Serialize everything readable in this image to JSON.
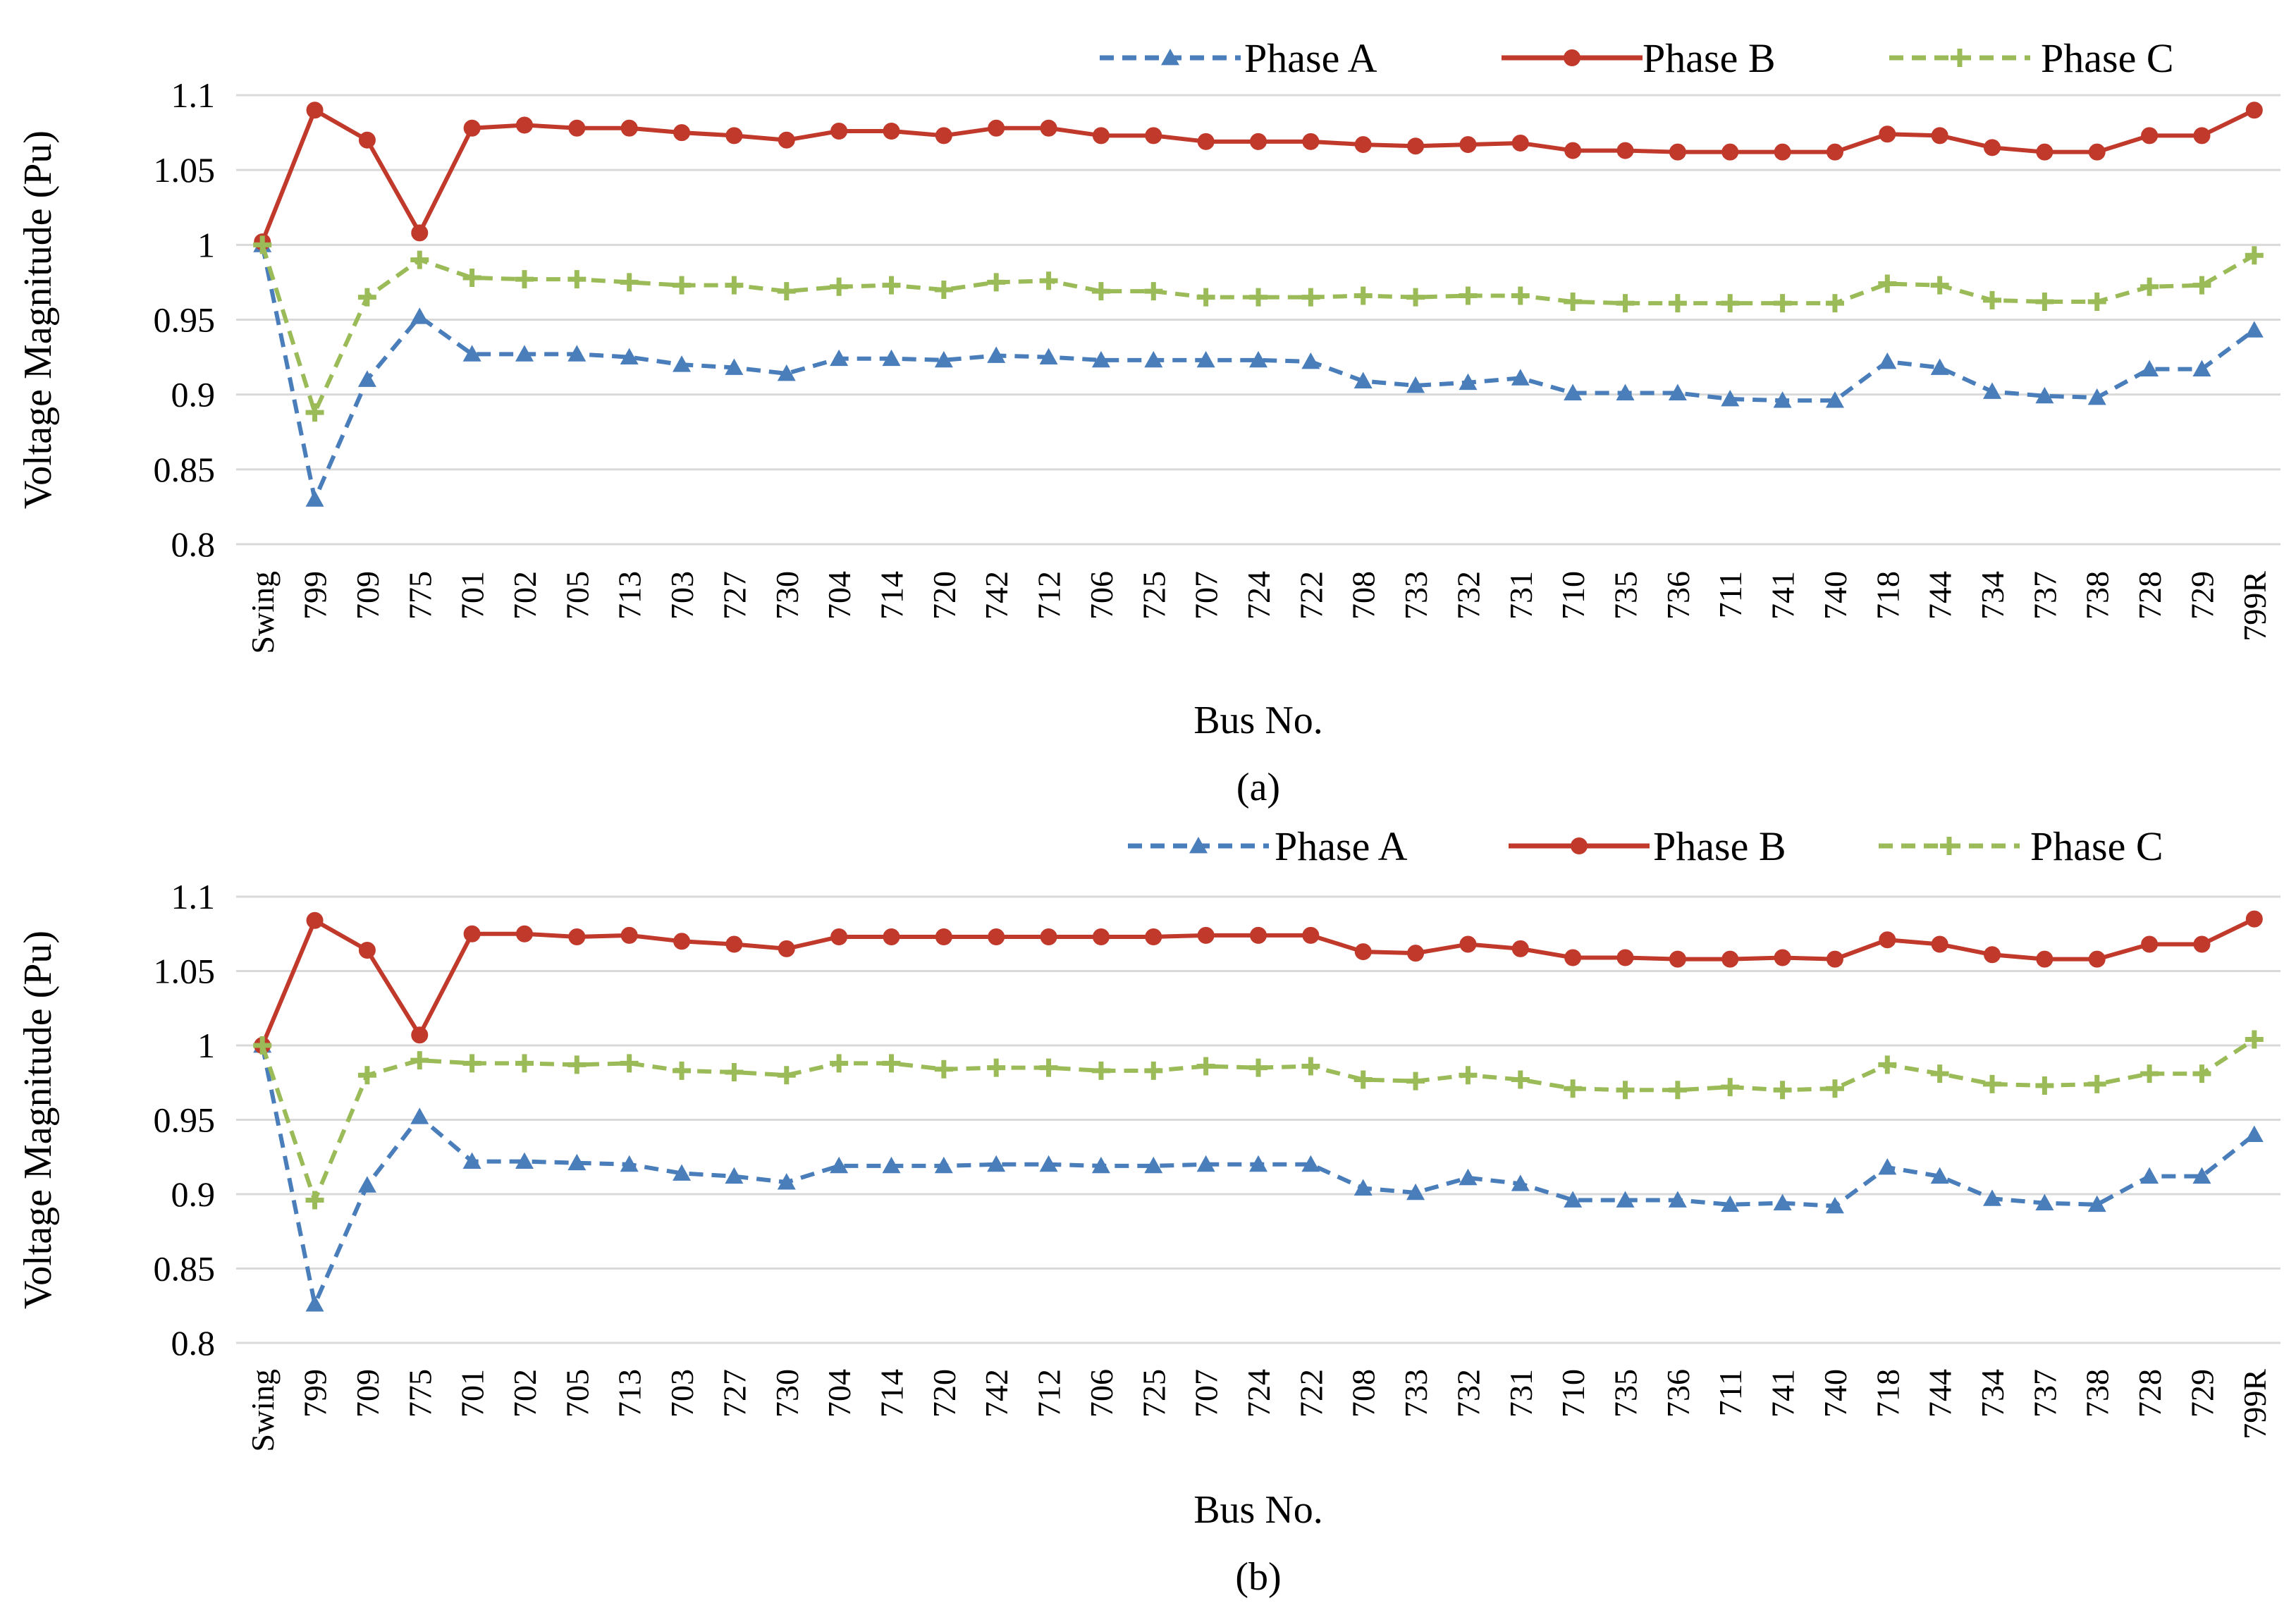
{
  "chart_data": [
    {
      "type": "line",
      "panel_label": "(a)",
      "xlabel": "Bus No.",
      "ylabel": "Voltage  Magnitude (Pu)",
      "ylim": [
        0.8,
        1.1
      ],
      "yticks": [
        "0.8",
        "0.85",
        "0.9",
        "0.95",
        "1",
        "1.05",
        "1.1"
      ],
      "grid": "horizontal",
      "legend_position": "top-right",
      "categories": [
        "Swing",
        "799",
        "709",
        "775",
        "701",
        "702",
        "705",
        "713",
        "703",
        "727",
        "730",
        "704",
        "714",
        "720",
        "742",
        "712",
        "706",
        "725",
        "707",
        "724",
        "722",
        "708",
        "733",
        "732",
        "731",
        "710",
        "735",
        "736",
        "711",
        "741",
        "740",
        "718",
        "744",
        "734",
        "737",
        "738",
        "728",
        "729",
        "799R"
      ],
      "series": [
        {
          "name": "Phase A",
          "color": "#4a7ebb",
          "style": "dashed",
          "marker": "triangle",
          "values": [
            1.0,
            0.83,
            0.91,
            0.952,
            0.927,
            0.927,
            0.927,
            0.925,
            0.92,
            0.918,
            0.914,
            0.924,
            0.924,
            0.923,
            0.926,
            0.925,
            0.923,
            0.923,
            0.923,
            0.923,
            0.922,
            0.909,
            0.906,
            0.908,
            0.911,
            0.901,
            0.901,
            0.901,
            0.897,
            0.896,
            0.896,
            0.922,
            0.918,
            0.902,
            0.899,
            0.898,
            0.917,
            0.917,
            0.943
          ]
        },
        {
          "name": "Phase B",
          "color": "#c0392b",
          "style": "solid",
          "marker": "circle",
          "values": [
            1.002,
            1.09,
            1.07,
            1.008,
            1.078,
            1.08,
            1.078,
            1.078,
            1.075,
            1.073,
            1.07,
            1.076,
            1.076,
            1.073,
            1.078,
            1.078,
            1.073,
            1.073,
            1.069,
            1.069,
            1.069,
            1.067,
            1.066,
            1.067,
            1.068,
            1.063,
            1.063,
            1.062,
            1.062,
            1.062,
            1.062,
            1.074,
            1.073,
            1.065,
            1.062,
            1.062,
            1.073,
            1.073,
            1.09
          ]
        },
        {
          "name": "Phase C",
          "color": "#9bbb59",
          "style": "dashed",
          "marker": "plus",
          "values": [
            1.0,
            0.888,
            0.965,
            0.99,
            0.978,
            0.977,
            0.977,
            0.975,
            0.973,
            0.973,
            0.969,
            0.972,
            0.973,
            0.97,
            0.975,
            0.976,
            0.969,
            0.969,
            0.965,
            0.965,
            0.965,
            0.966,
            0.965,
            0.966,
            0.966,
            0.962,
            0.961,
            0.961,
            0.961,
            0.961,
            0.961,
            0.974,
            0.973,
            0.963,
            0.962,
            0.962,
            0.972,
            0.973,
            0.993
          ]
        }
      ]
    },
    {
      "type": "line",
      "panel_label": "(b)",
      "xlabel": "Bus No.",
      "ylabel": "Voltage  Magnitude (Pu)",
      "ylim": [
        0.8,
        1.1
      ],
      "yticks": [
        "0.8",
        "0.85",
        "0.9",
        "0.95",
        "1",
        "1.05",
        "1.1"
      ],
      "grid": "horizontal",
      "legend_position": "top-right",
      "categories": [
        "Swing",
        "799",
        "709",
        "775",
        "701",
        "702",
        "705",
        "713",
        "703",
        "727",
        "730",
        "704",
        "714",
        "720",
        "742",
        "712",
        "706",
        "725",
        "707",
        "724",
        "722",
        "708",
        "733",
        "732",
        "731",
        "710",
        "735",
        "736",
        "711",
        "741",
        "740",
        "718",
        "744",
        "734",
        "737",
        "738",
        "728",
        "729",
        "799R"
      ],
      "series": [
        {
          "name": "Phase A",
          "color": "#4a7ebb",
          "style": "dashed",
          "marker": "triangle",
          "values": [
            1.0,
            0.826,
            0.906,
            0.952,
            0.922,
            0.922,
            0.921,
            0.92,
            0.914,
            0.912,
            0.908,
            0.919,
            0.919,
            0.919,
            0.92,
            0.92,
            0.919,
            0.919,
            0.92,
            0.92,
            0.92,
            0.904,
            0.901,
            0.911,
            0.907,
            0.896,
            0.896,
            0.896,
            0.893,
            0.894,
            0.892,
            0.918,
            0.912,
            0.897,
            0.894,
            0.893,
            0.912,
            0.912,
            0.94
          ]
        },
        {
          "name": "Phase B",
          "color": "#c0392b",
          "style": "solid",
          "marker": "circle",
          "values": [
            1.0,
            1.084,
            1.064,
            1.007,
            1.075,
            1.075,
            1.073,
            1.074,
            1.07,
            1.068,
            1.065,
            1.073,
            1.073,
            1.073,
            1.073,
            1.073,
            1.073,
            1.073,
            1.074,
            1.074,
            1.074,
            1.063,
            1.062,
            1.068,
            1.065,
            1.059,
            1.059,
            1.058,
            1.058,
            1.059,
            1.058,
            1.071,
            1.068,
            1.061,
            1.058,
            1.058,
            1.068,
            1.068,
            1.085
          ]
        },
        {
          "name": "Phase C",
          "color": "#9bbb59",
          "style": "dashed",
          "marker": "plus",
          "values": [
            1.0,
            0.896,
            0.98,
            0.99,
            0.988,
            0.988,
            0.987,
            0.988,
            0.983,
            0.982,
            0.98,
            0.988,
            0.988,
            0.984,
            0.985,
            0.985,
            0.983,
            0.983,
            0.986,
            0.985,
            0.986,
            0.977,
            0.976,
            0.98,
            0.977,
            0.971,
            0.97,
            0.97,
            0.972,
            0.97,
            0.971,
            0.987,
            0.981,
            0.974,
            0.973,
            0.974,
            0.981,
            0.981,
            1.004
          ]
        }
      ]
    }
  ]
}
